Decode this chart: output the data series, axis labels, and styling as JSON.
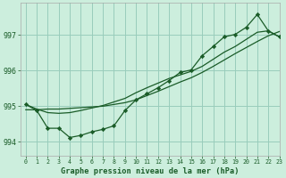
{
  "title": "Graphe pression niveau de la mer (hPa)",
  "bg_color": "#cceedd",
  "grid_color": "#99ccbb",
  "line_color": "#1a5c28",
  "xlim": [
    -0.5,
    23
  ],
  "ylim": [
    993.6,
    997.9
  ],
  "yticks": [
    994,
    995,
    996,
    997
  ],
  "xticks": [
    0,
    1,
    2,
    3,
    4,
    5,
    6,
    7,
    8,
    9,
    10,
    11,
    12,
    13,
    14,
    15,
    16,
    17,
    18,
    19,
    20,
    21,
    22,
    23
  ],
  "hours": [
    0,
    1,
    2,
    3,
    4,
    5,
    6,
    7,
    8,
    9,
    10,
    11,
    12,
    13,
    14,
    15,
    16,
    17,
    18,
    19,
    20,
    21,
    22,
    23
  ],
  "pressure_markers": [
    995.05,
    994.88,
    994.38,
    994.38,
    994.12,
    994.18,
    994.28,
    994.35,
    994.45,
    994.88,
    995.18,
    995.35,
    995.52,
    995.72,
    995.95,
    996.02,
    996.42,
    996.68,
    996.95,
    997.02,
    997.22,
    997.58,
    997.12,
    996.95
  ],
  "pressure_smooth": [
    995.05,
    994.92,
    994.82,
    994.8,
    994.82,
    994.88,
    994.95,
    995.02,
    995.12,
    995.22,
    995.38,
    995.52,
    995.65,
    995.78,
    995.88,
    995.98,
    996.12,
    996.32,
    996.52,
    996.68,
    996.88,
    997.08,
    997.12,
    996.95
  ],
  "pressure_straight": [
    994.9,
    994.9,
    994.92,
    994.92,
    994.94,
    994.96,
    994.98,
    995.0,
    995.05,
    995.1,
    995.18,
    995.3,
    995.42,
    995.55,
    995.68,
    995.8,
    995.95,
    996.12,
    996.3,
    996.48,
    996.65,
    996.82,
    996.98,
    997.1
  ]
}
